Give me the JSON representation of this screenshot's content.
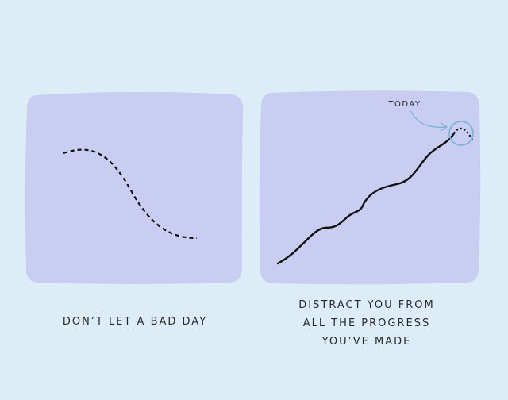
{
  "panels": [
    {
      "caption": "DON’T LET A BAD DAY"
    },
    {
      "annotation": "TODAY",
      "caption_lines": [
        "DISTRACT YOU FROM",
        "ALL THE PROGRESS",
        "YOU’VE MADE"
      ]
    }
  ]
}
